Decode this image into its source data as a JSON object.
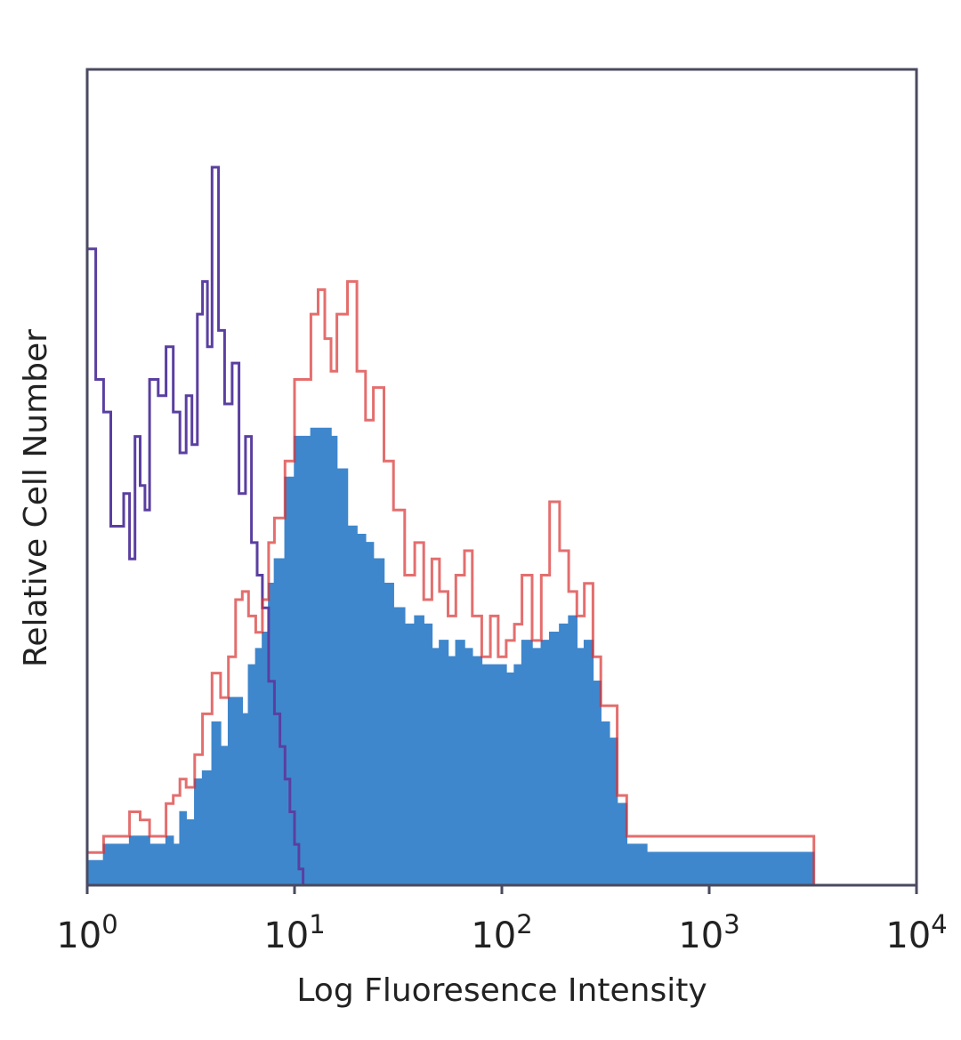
{
  "chart_data": {
    "type": "area",
    "xlabel": "Log Fluoresence Intensity",
    "ylabel": "Relative Cell Number",
    "x_scale": "log",
    "xlim": [
      1,
      10000
    ],
    "ylim": [
      0,
      100
    ],
    "x_ticks": [
      {
        "base": "10",
        "exp": "0",
        "value": 1
      },
      {
        "base": "10",
        "exp": "1",
        "value": 10
      },
      {
        "base": "10",
        "exp": "2",
        "value": 100
      },
      {
        "base": "10",
        "exp": "3",
        "value": 1000
      },
      {
        "base": "10",
        "exp": "4",
        "value": 10000
      }
    ],
    "grid": false,
    "legend": "none",
    "series": [
      {
        "style": "outline",
        "color": "#5a3fa0",
        "x": [
          1.0,
          1.1,
          1.2,
          1.3,
          1.4,
          1.5,
          1.6,
          1.7,
          1.8,
          1.9,
          2.0,
          2.2,
          2.4,
          2.6,
          2.8,
          3.0,
          3.2,
          3.4,
          3.6,
          3.8,
          4.0,
          4.3,
          4.6,
          5.0,
          5.4,
          5.8,
          6.2,
          6.6,
          7.0,
          7.5,
          8.0,
          8.5,
          9.0,
          9.5,
          10.0,
          10.5,
          11.0
        ],
        "values": [
          78,
          62,
          58,
          44,
          44,
          48,
          40,
          55,
          49,
          46,
          62,
          60,
          66,
          58,
          53,
          60,
          54,
          70,
          74,
          66,
          88,
          68,
          59,
          64,
          48,
          55,
          42,
          38,
          34,
          25,
          21,
          17,
          13,
          9,
          5,
          2,
          0
        ]
      },
      {
        "style": "outline",
        "color": "#d83030",
        "x": [
          1.0,
          1.2,
          1.4,
          1.6,
          1.8,
          2.0,
          2.2,
          2.4,
          2.6,
          2.8,
          3.0,
          3.3,
          3.6,
          4.0,
          4.4,
          4.8,
          5.2,
          5.6,
          6.0,
          6.5,
          7.0,
          7.5,
          8.0,
          9.0,
          10.0,
          11.0,
          12.0,
          13.0,
          14.0,
          15.0,
          16.0,
          18.0,
          20.0,
          22.0,
          24.0,
          27.0,
          30.0,
          34.0,
          38.0,
          42.0,
          46.0,
          50.0,
          55.0,
          60.0,
          66.0,
          72.0,
          80.0,
          88.0,
          96.0,
          105.0,
          115.0,
          125.0,
          140.0,
          155.0,
          170.0,
          190.0,
          210.0,
          230.0,
          250.0,
          275.0,
          300.0,
          330.0,
          360.0,
          400.0,
          450.0,
          500.0,
          550.0,
          600.0,
          700.0,
          800.0,
          900.0,
          1000.0,
          1100.0,
          2500.0,
          2900.0,
          3200.0
        ],
        "values": [
          4,
          6,
          6,
          9,
          8,
          6,
          6,
          10,
          11,
          13,
          12,
          16,
          21,
          26,
          23,
          28,
          35,
          36,
          33,
          31,
          35,
          42,
          45,
          52,
          62,
          62,
          70,
          73,
          67,
          63,
          70,
          74,
          63,
          57,
          61,
          52,
          46,
          38,
          42,
          35,
          40,
          36,
          33,
          38,
          41,
          33,
          28,
          33,
          28,
          30,
          32,
          38,
          30,
          38,
          47,
          41,
          36,
          33,
          37,
          28,
          22,
          22,
          11,
          6,
          6,
          6,
          6,
          6,
          6,
          6,
          6,
          6,
          6,
          6,
          6,
          0
        ]
      },
      {
        "style": "filled",
        "color": "#3f87cc",
        "x": [
          1.0,
          1.2,
          1.4,
          1.6,
          1.8,
          2.0,
          2.2,
          2.4,
          2.6,
          2.8,
          3.0,
          3.3,
          3.6,
          4.0,
          4.4,
          4.8,
          5.2,
          5.6,
          6.0,
          6.5,
          7.0,
          7.5,
          8.0,
          9.0,
          10.0,
          11.0,
          12.0,
          13.0,
          14.0,
          15.0,
          16.0,
          18.0,
          20.0,
          22.0,
          24.0,
          27.0,
          30.0,
          34.0,
          38.0,
          42.0,
          46.0,
          50.0,
          55.0,
          60.0,
          66.0,
          72.0,
          80.0,
          88.0,
          96.0,
          105.0,
          115.0,
          125.0,
          140.0,
          155.0,
          170.0,
          190.0,
          210.0,
          230.0,
          250.0,
          275.0,
          300.0,
          330.0,
          360.0,
          400.0,
          450.0,
          500.0,
          550.0,
          600.0,
          700.0,
          800.0,
          900.0,
          1000.0,
          1100.0,
          2500.0,
          2900.0,
          3200.0
        ],
        "values": [
          3,
          5,
          5,
          6,
          6,
          5,
          5,
          6,
          5,
          9,
          8,
          13,
          14,
          20,
          17,
          23,
          23,
          21,
          27,
          29,
          31,
          37,
          40,
          50,
          55,
          55,
          56,
          56,
          56,
          55,
          51,
          44,
          43,
          42,
          40,
          37,
          34,
          32,
          33,
          32,
          29,
          30,
          28,
          30,
          29,
          28,
          27,
          27,
          27,
          26,
          27,
          30,
          29,
          30,
          31,
          32,
          33,
          29,
          30,
          25,
          20,
          18,
          10,
          5,
          5,
          4,
          4,
          4,
          4,
          4,
          4,
          4,
          4,
          4,
          4,
          0
        ]
      }
    ]
  }
}
